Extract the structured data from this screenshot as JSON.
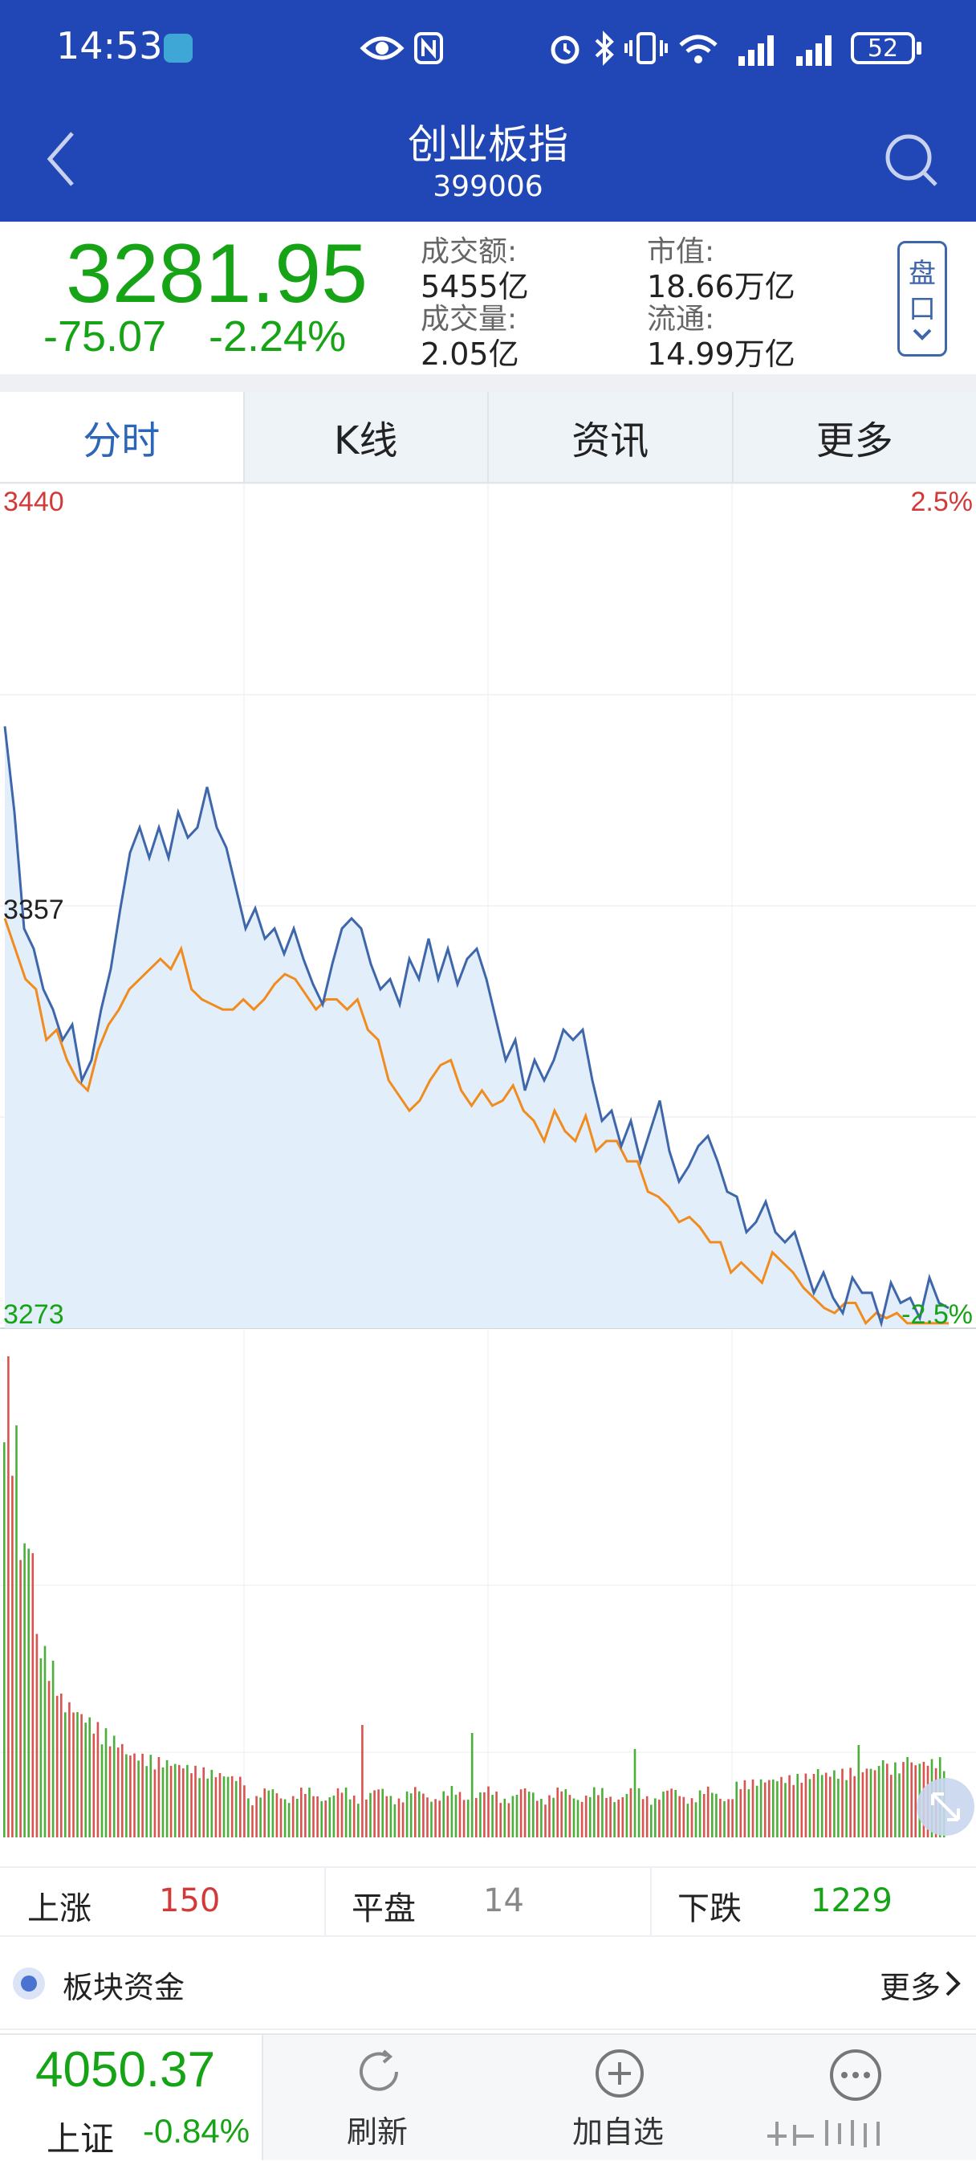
{
  "status_bar": {
    "time": "14:53",
    "battery": "52"
  },
  "header": {
    "title": "创业板指",
    "code": "399006"
  },
  "quote": {
    "price": "3281.95",
    "change": "-75.07",
    "change_pct": "-2.24%",
    "turnover_label": "成交额:",
    "turnover_value": "5455亿",
    "volume_label": "成交量:",
    "volume_value": "2.05亿",
    "mktcap_label": "市值:",
    "mktcap_value": "18.66万亿",
    "float_label": "流通:",
    "float_value": "14.99万亿",
    "pankou_button": [
      "盘",
      "口"
    ]
  },
  "tabs": [
    {
      "label": "分时",
      "active": true
    },
    {
      "label": "K线",
      "active": false
    },
    {
      "label": "资讯",
      "active": false
    },
    {
      "label": "更多",
      "active": false
    }
  ],
  "chart_labels": {
    "y_top": "3440",
    "y_mid": "3357",
    "y_bottom": "3273",
    "pct_top": "2.5%",
    "pct_bottom": "-2.5%"
  },
  "chart_data": {
    "type": "line",
    "ylim": [
      3273,
      3440
    ],
    "ylim_pct": [
      -2.5,
      2.5
    ],
    "reference": 3357,
    "series": [
      {
        "values": [
          3392,
          3375,
          3352,
          3348,
          3340,
          3336,
          3330,
          3333,
          3322,
          3326,
          3336,
          3344,
          3356,
          3367,
          3372,
          3366,
          3372,
          3366,
          3375,
          3370,
          3372,
          3380,
          3372,
          3368,
          3360,
          3352,
          3356,
          3350,
          3352,
          3347,
          3352,
          3346,
          3341,
          3337,
          3345,
          3352,
          3354,
          3352,
          3345,
          3340,
          3342,
          3337,
          3346,
          3342,
          3350,
          3342,
          3348,
          3341,
          3346,
          3348,
          3342,
          3334,
          3326,
          3330,
          3320,
          3326,
          3322,
          3326,
          3332,
          3330,
          3332,
          3322,
          3314,
          3316,
          3309,
          3314,
          3306,
          3312,
          3318,
          3308,
          3302,
          3305,
          3309,
          3311,
          3306,
          3300,
          3299,
          3292,
          3294,
          3298,
          3292,
          3290,
          3292,
          3286,
          3280,
          3284,
          3279,
          3276,
          3283,
          3280,
          3280,
          3274,
          3282,
          3278,
          3279,
          3275,
          3283,
          3278,
          3277
        ]
      },
      {
        "values": [
          3354,
          3348,
          3342,
          3340,
          3330,
          3332,
          3326,
          3322,
          3320,
          3328,
          3333,
          3336,
          3340,
          3342,
          3344,
          3346,
          3344,
          3348,
          3340,
          3338,
          3337,
          3336,
          3336,
          3338,
          3336,
          3338,
          3341,
          3343,
          3342,
          3339,
          3336,
          3338,
          3338,
          3336,
          3338,
          3332,
          3330,
          3322,
          3319,
          3316,
          3318,
          3322,
          3325,
          3326,
          3320,
          3317,
          3320,
          3317,
          3318,
          3321,
          3316,
          3314,
          3310,
          3316,
          3312,
          3310,
          3315,
          3308,
          3310,
          3310,
          3306,
          3306,
          3300,
          3299,
          3297,
          3294,
          3295,
          3293,
          3290,
          3290,
          3284,
          3286,
          3284,
          3282,
          3288,
          3286,
          3284,
          3281,
          3279,
          3277,
          3276,
          3278,
          3278,
          3274,
          3276,
          3275,
          3276,
          3274,
          3274,
          3274,
          3274,
          3274
        ]
      }
    ],
    "volume_bars": "red/green alternating volume histogram, high at open then tapering"
  },
  "stats": {
    "up_label": "上涨",
    "up_value": "150",
    "flat_label": "平盘",
    "flat_value": "14",
    "down_label": "下跌",
    "down_value": "1229"
  },
  "funds": {
    "label": "板块资金",
    "more": "更多"
  },
  "bottom": {
    "index_value": "4050.37",
    "index_name": "上证",
    "index_change": "-0.84%",
    "refresh": "刷新",
    "add": "加自选"
  },
  "colors": {
    "brand": "#2147b6",
    "up": "#d23a3a",
    "down": "#16a316",
    "line_main": "#3e66aa",
    "line_avg": "#f08c1e",
    "fill": "#e3eefb"
  }
}
